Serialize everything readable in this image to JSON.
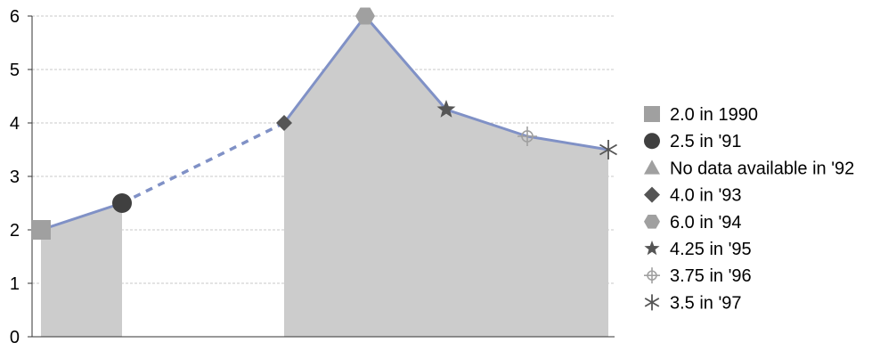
{
  "chart_data": {
    "type": "area",
    "x": [
      "1990",
      "1991",
      "1992",
      "1993",
      "1994",
      "1995",
      "1996",
      "1997"
    ],
    "values": [
      2.0,
      2.5,
      null,
      4.0,
      6.0,
      4.25,
      3.75,
      3.5
    ],
    "gap_bridge": "dashed",
    "ylim": [
      0,
      6
    ],
    "yticks": [
      "0",
      "1",
      "2",
      "3",
      "4",
      "5",
      "6"
    ],
    "grid": true,
    "legend_position": "right",
    "colors": {
      "area_fill": "#cccccc",
      "line": "#8091c6",
      "grid": "#c8c8c8",
      "marker_light": "#a0a0a0",
      "marker_dark": "#555555"
    },
    "legend": [
      {
        "label": "2.0 in 1990",
        "marker": "square"
      },
      {
        "label": "2.5 in '91",
        "marker": "circle"
      },
      {
        "label": "No data available in '92",
        "marker": "triangle"
      },
      {
        "label": "4.0 in '93",
        "marker": "diamond"
      },
      {
        "label": "6.0 in '94",
        "marker": "hexagon"
      },
      {
        "label": "4.25 in '95",
        "marker": "star"
      },
      {
        "label": "3.75 in '96",
        "marker": "crosshair"
      },
      {
        "label": "3.5 in '97",
        "marker": "asterisk"
      }
    ]
  }
}
